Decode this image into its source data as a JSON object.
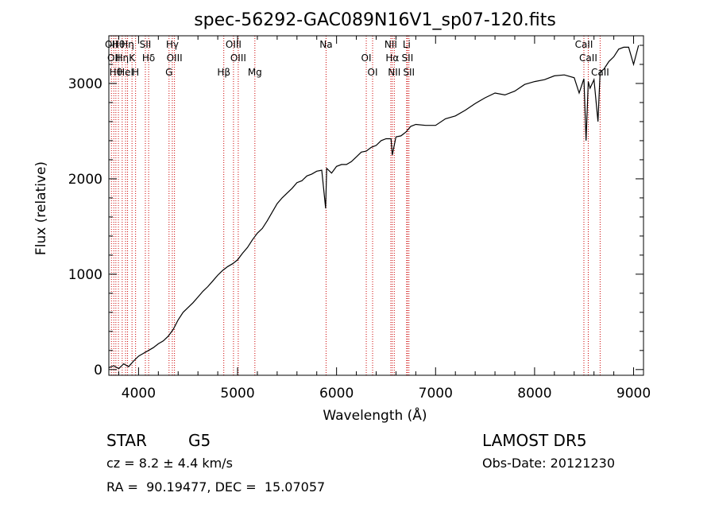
{
  "chart_data": {
    "type": "line",
    "title": "spec-56292-GAC089N16V1_sp07-120.fits",
    "xlabel": "Wavelength (Å)",
    "ylabel": "Flux (relative)",
    "xlim": [
      3700,
      9100
    ],
    "ylim": [
      -60,
      3500
    ],
    "xticks": [
      4000,
      5000,
      6000,
      7000,
      8000,
      9000
    ],
    "yticks": [
      0,
      1000,
      2000,
      3000
    ],
    "xtick_labels": [
      "4000",
      "5000",
      "6000",
      "7000",
      "8000",
      "9000"
    ],
    "ytick_labels": [
      "0",
      "1000",
      "2000",
      "3000"
    ],
    "spectrum": {
      "x": [
        3700,
        3750,
        3800,
        3850,
        3900,
        3950,
        4000,
        4050,
        4100,
        4150,
        4200,
        4250,
        4300,
        4350,
        4400,
        4450,
        4500,
        4550,
        4600,
        4650,
        4700,
        4750,
        4800,
        4850,
        4900,
        4950,
        5000,
        5050,
        5100,
        5150,
        5200,
        5250,
        5300,
        5350,
        5400,
        5450,
        5500,
        5550,
        5600,
        5650,
        5700,
        5750,
        5800,
        5850,
        5890,
        5900,
        5950,
        6000,
        6050,
        6100,
        6150,
        6200,
        6250,
        6300,
        6350,
        6400,
        6450,
        6500,
        6550,
        6563,
        6600,
        6650,
        6700,
        6750,
        6800,
        6900,
        7000,
        7100,
        7200,
        7300,
        7400,
        7500,
        7600,
        7700,
        7800,
        7900,
        8000,
        8100,
        8200,
        8300,
        8400,
        8450,
        8498,
        8520,
        8542,
        8560,
        8600,
        8640,
        8662,
        8700,
        8750,
        8800,
        8850,
        8900,
        8950,
        9000,
        9050
      ],
      "y": [
        20,
        40,
        10,
        60,
        30,
        90,
        140,
        170,
        200,
        230,
        270,
        300,
        350,
        420,
        520,
        600,
        650,
        700,
        760,
        820,
        870,
        930,
        990,
        1040,
        1080,
        1110,
        1150,
        1220,
        1280,
        1360,
        1430,
        1480,
        1560,
        1650,
        1740,
        1800,
        1850,
        1900,
        1960,
        1980,
        2030,
        2050,
        2080,
        2090,
        1690,
        2110,
        2060,
        2130,
        2150,
        2150,
        2180,
        2230,
        2280,
        2290,
        2330,
        2350,
        2400,
        2420,
        2420,
        2250,
        2440,
        2450,
        2490,
        2550,
        2570,
        2560,
        2560,
        2630,
        2660,
        2720,
        2790,
        2850,
        2900,
        2880,
        2920,
        2990,
        3020,
        3040,
        3080,
        3090,
        3060,
        2900,
        3050,
        2400,
        3020,
        2950,
        3040,
        2600,
        3120,
        3150,
        3230,
        3280,
        3360,
        3380,
        3380,
        3200,
        3400
      ]
    },
    "lines": [
      {
        "wl": 3726,
        "label": "OII"
      },
      {
        "wl": 3750,
        "label": "OII"
      },
      {
        "wl": 3771,
        "label": "Hθ"
      },
      {
        "wl": 3797,
        "label": "Hθ"
      },
      {
        "wl": 3835,
        "label": "Hη"
      },
      {
        "wl": 3869,
        "label": "HeI"
      },
      {
        "wl": 3889,
        "label": "Hη"
      },
      {
        "wl": 3934,
        "label": "K"
      },
      {
        "wl": 3970,
        "label": "H"
      },
      {
        "wl": 4069,
        "label": "SII"
      },
      {
        "wl": 4102,
        "label": "Hδ"
      },
      {
        "wl": 4308,
        "label": "G"
      },
      {
        "wl": 4341,
        "label": "Hγ"
      },
      {
        "wl": 4363,
        "label": "OIII"
      },
      {
        "wl": 4861,
        "label": "Hβ"
      },
      {
        "wl": 4959,
        "label": "OIII"
      },
      {
        "wl": 5007,
        "label": "OIII"
      },
      {
        "wl": 5175,
        "label": "Mg"
      },
      {
        "wl": 5894,
        "label": "Na"
      },
      {
        "wl": 6300,
        "label": "OI"
      },
      {
        "wl": 6364,
        "label": "OI"
      },
      {
        "wl": 6548,
        "label": "NII"
      },
      {
        "wl": 6563,
        "label": "Hα"
      },
      {
        "wl": 6583,
        "label": "NII"
      },
      {
        "wl": 6708,
        "label": "Li"
      },
      {
        "wl": 6716,
        "label": "SII"
      },
      {
        "wl": 6731,
        "label": "SII"
      },
      {
        "wl": 8498,
        "label": "CaII"
      },
      {
        "wl": 8542,
        "label": "CaII"
      },
      {
        "wl": 8662,
        "label": "CaII"
      }
    ],
    "grid": false,
    "legend": "none"
  },
  "footer": {
    "object_class": "STAR",
    "subclass": "G5",
    "survey": "LAMOST DR5",
    "redshift": "cz = 8.2 ± 4.4 km/s",
    "obs_date": "Obs-Date: 20121230",
    "coords": "RA =  90.19477, DEC =  15.07057"
  },
  "colors": {
    "spectrum": "#000000",
    "line_marker": "#cc0000",
    "axes": "#000000"
  }
}
